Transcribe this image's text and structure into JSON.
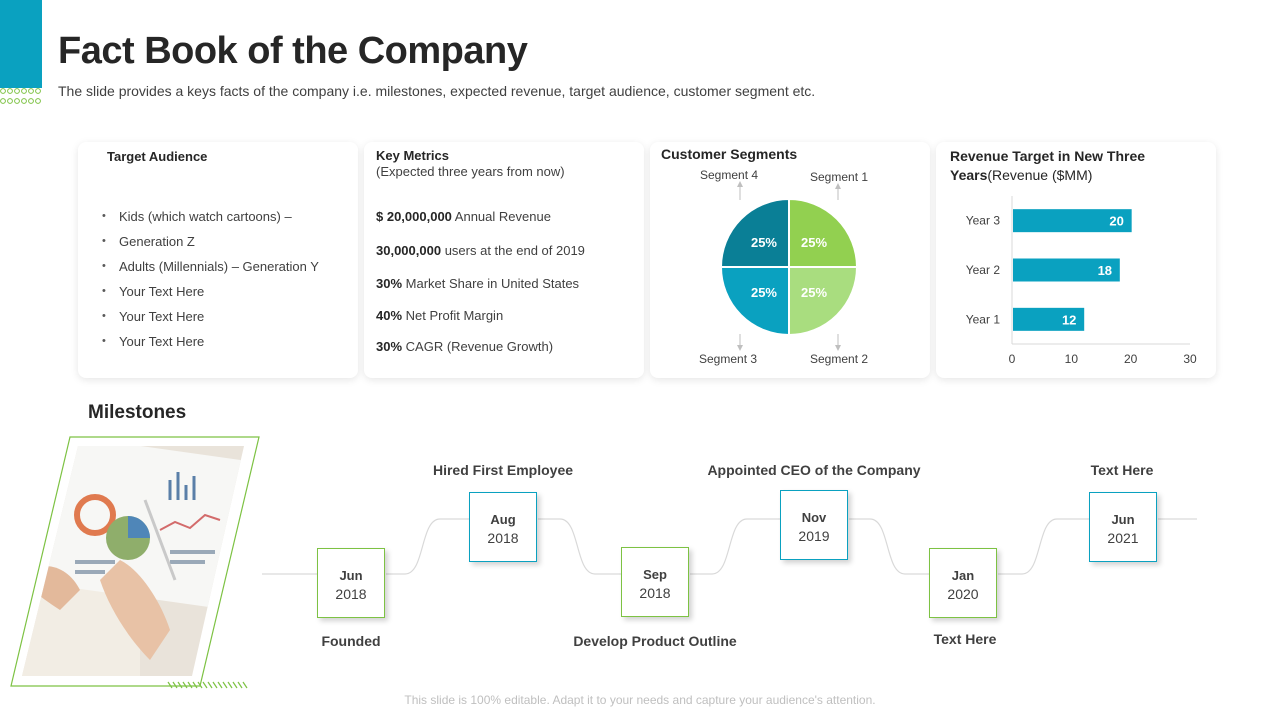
{
  "header": {
    "title": "Fact Book of the Company",
    "subtitle": "The slide provides a keys facts of the company i.e. milestones, expected revenue, target audience, customer segment etc."
  },
  "target_audience": {
    "heading": "Target Audience",
    "items": [
      "Kids (which watch cartoons) –",
      "Generation Z",
      "Adults (Millennials) – Generation Y",
      "Your Text Here",
      "Your Text Here",
      "Your Text Here"
    ]
  },
  "key_metrics": {
    "heading": "Key Metrics",
    "subheading": "(Expected three years from now)",
    "items": [
      {
        "bold": "$ 20,000,000",
        "text": " Annual Revenue"
      },
      {
        "bold": "30,000,000",
        "text": " users at the end of 2019"
      },
      {
        "bold": "30%",
        "text": " Market Share in United States"
      },
      {
        "bold": "40%",
        "text": " Net Profit Margin"
      },
      {
        "bold": "30%",
        "text": " CAGR (Revenue Growth)"
      }
    ]
  },
  "customer_segments": {
    "heading": "Customer Segments",
    "labels": [
      "Segment 4",
      "Segment 1",
      "Segment 3",
      "Segment 2"
    ],
    "colors": {
      "segment_1": "#92d050",
      "segment_2": "#a9dd7f",
      "segment_3": "#0aa1c0",
      "segment_4": "#0a7f96"
    }
  },
  "revenue_target": {
    "heading_bold_1": "Revenue Target in New Three",
    "heading_bold_2": "Years",
    "heading_normal": "(Revenue ($MM)"
  },
  "chart_data": [
    {
      "type": "pie",
      "title": "Customer Segments",
      "categories": [
        "Segment 1",
        "Segment 2",
        "Segment 3",
        "Segment 4"
      ],
      "values": [
        25,
        25,
        25,
        25
      ],
      "data_labels": [
        "25%",
        "25%",
        "25%",
        "25%"
      ]
    },
    {
      "type": "bar",
      "orientation": "horizontal",
      "title": "Revenue Target in New Three Years(Revenue ($MM)",
      "categories": [
        "Year 3",
        "Year 2",
        "Year 1"
      ],
      "values": [
        20,
        18,
        12
      ],
      "xlim": [
        0,
        30
      ],
      "xticks": [
        "0",
        "10",
        "20",
        "30"
      ],
      "bar_color": "#0aa1c0",
      "grid": false
    }
  ],
  "milestones": {
    "heading": "Milestones",
    "items": [
      {
        "month": "Jun",
        "year": "2018",
        "label": "Founded",
        "style": "green"
      },
      {
        "month": "Aug",
        "year": "2018",
        "label": "Hired First Employee",
        "style": "teal"
      },
      {
        "month": "Sep",
        "year": "2018",
        "label": "Develop Product Outline",
        "style": "green"
      },
      {
        "month": "Nov",
        "year": "2019",
        "label": "Appointed CEO of the Company",
        "style": "teal"
      },
      {
        "month": "Jan",
        "year": "2020",
        "label": "Text Here",
        "style": "green"
      },
      {
        "month": "Jun",
        "year": "2021",
        "label": "Text Here",
        "style": "teal"
      }
    ]
  },
  "footer": {
    "text": "This slide is 100% editable. Adapt it to your needs and capture your audience's attention."
  }
}
